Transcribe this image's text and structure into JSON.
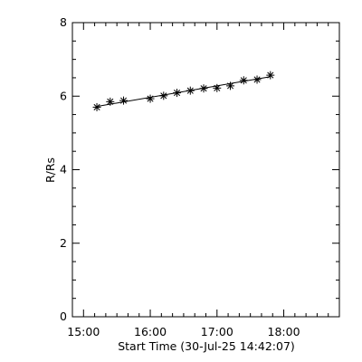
{
  "chart_data": {
    "type": "scatter",
    "title": "",
    "xlabel": "Start Time (30-Jul-25 14:42:07)",
    "ylabel": "R/Rs",
    "x_ticks": [
      "15:00",
      "16:00",
      "17:00",
      "18:00"
    ],
    "y_ticks": [
      "0",
      "2",
      "4",
      "6",
      "8"
    ],
    "xlim": [
      "14:50",
      "18:50"
    ],
    "ylim": [
      0,
      8
    ],
    "grid": false,
    "marker": "asterisk",
    "series": [
      {
        "name": "",
        "x": [
          "15:12",
          "15:24",
          "15:36",
          "16:00",
          "16:12",
          "16:24",
          "16:36",
          "16:48",
          "17:00",
          "17:12",
          "17:24",
          "17:36",
          "17:48"
        ],
        "values": [
          5.7,
          5.85,
          5.88,
          5.93,
          6.01,
          6.09,
          6.15,
          6.21,
          6.22,
          6.28,
          6.43,
          6.45,
          6.57
        ]
      }
    ],
    "fit_line": {
      "x": [
        "15:12",
        "17:48"
      ],
      "values": [
        5.72,
        6.53
      ]
    }
  }
}
